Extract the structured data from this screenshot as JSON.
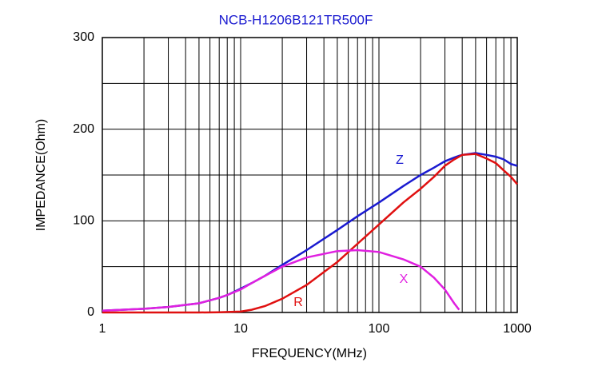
{
  "chart_data": {
    "type": "line",
    "title": "NCB-H1206B121TR500F",
    "x_label": "FREQUENCY(MHz)",
    "y_label": "IMPEDANCE(Ohm)",
    "x": [
      1,
      2,
      3,
      5,
      7,
      8,
      10,
      12,
      15,
      20,
      30,
      50,
      70,
      100,
      150,
      200,
      250,
      300,
      350,
      380,
      400,
      500,
      600,
      700,
      800,
      900,
      1000
    ],
    "series": [
      {
        "name": "Z",
        "color": "#1a1ad0",
        "values": [
          2,
          4,
          6,
          10,
          16,
          19,
          26,
          32,
          40,
          52,
          68,
          90,
          105,
          120,
          138,
          150,
          158,
          165,
          169,
          171,
          172,
          174,
          172,
          170,
          167,
          162,
          160
        ]
      },
      {
        "name": "R",
        "color": "#e01010",
        "values": [
          0,
          0,
          0,
          0,
          0.3,
          0.5,
          1,
          3,
          7,
          15,
          30,
          55,
          75,
          96,
          120,
          135,
          148,
          160,
          167,
          170,
          172,
          173,
          168,
          163,
          155,
          148,
          140
        ]
      },
      {
        "name": "X",
        "color": "#e020e0",
        "values": [
          2,
          4,
          6,
          10,
          16,
          19,
          25,
          32,
          40,
          50,
          60,
          67,
          68,
          66,
          58,
          50,
          38,
          25,
          10,
          3,
          null,
          null,
          null,
          null,
          null,
          null,
          null
        ]
      }
    ],
    "xlog": true,
    "xlim": [
      1,
      1000
    ],
    "xticks": [
      1,
      10,
      100,
      1000
    ],
    "ylim": [
      0,
      300
    ],
    "yticks": [
      0,
      100,
      200,
      300
    ],
    "yminorticks": [
      50,
      150,
      250
    ],
    "grid": true
  }
}
